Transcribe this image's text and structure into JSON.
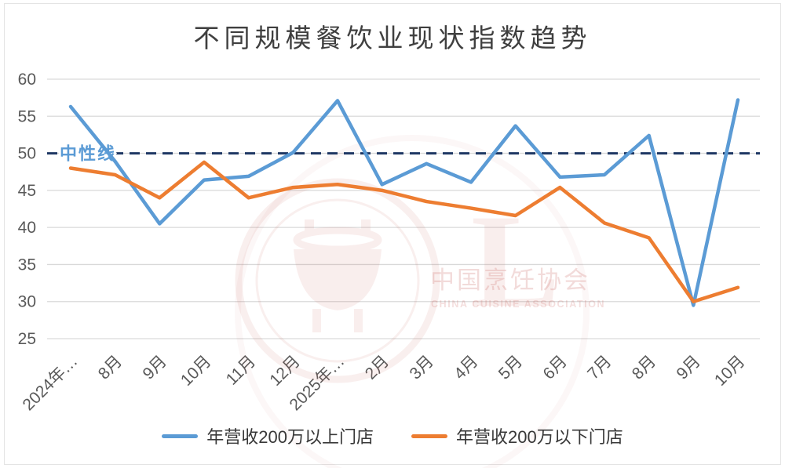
{
  "chart_data": {
    "type": "line",
    "title": "不同规模餐饮业现状指数趋势",
    "categories": [
      "2024年…",
      "8月",
      "9月",
      "10月",
      "11月",
      "12月",
      "2025年…",
      "2月",
      "3月",
      "4月",
      "5月",
      "6月",
      "7月",
      "8月",
      "9月",
      "10月"
    ],
    "series": [
      {
        "name": "年营收200万以上门店",
        "color": "#5B9BD5",
        "values": [
          56.3,
          48.9,
          40.5,
          46.4,
          46.9,
          50.1,
          57.1,
          45.8,
          48.6,
          46.1,
          53.7,
          46.8,
          47.1,
          52.4,
          29.5,
          57.2
        ]
      },
      {
        "name": "年营收200万以下门店",
        "color": "#ED7D31",
        "values": [
          48.0,
          47.1,
          44.0,
          48.8,
          44.0,
          45.4,
          45.8,
          45.0,
          43.5,
          42.6,
          41.6,
          45.4,
          40.6,
          38.6,
          30.0,
          31.9
        ]
      }
    ],
    "y_axis": {
      "min": 25,
      "max": 60,
      "step": 5
    },
    "reference_line": {
      "value": 50,
      "label": "中性线",
      "line_color": "#1F3864",
      "label_color": "#5B9BD5"
    },
    "grid": true,
    "grid_color": "#D9D9D9",
    "tick_color": "#595959",
    "legend_position": "bottom"
  },
  "watermark": {
    "org_cn": "中国烹饪协会",
    "org_en": "CHINA CUISINE ASSOCIATION",
    "monogram": "L",
    "color": "#C9605B"
  }
}
